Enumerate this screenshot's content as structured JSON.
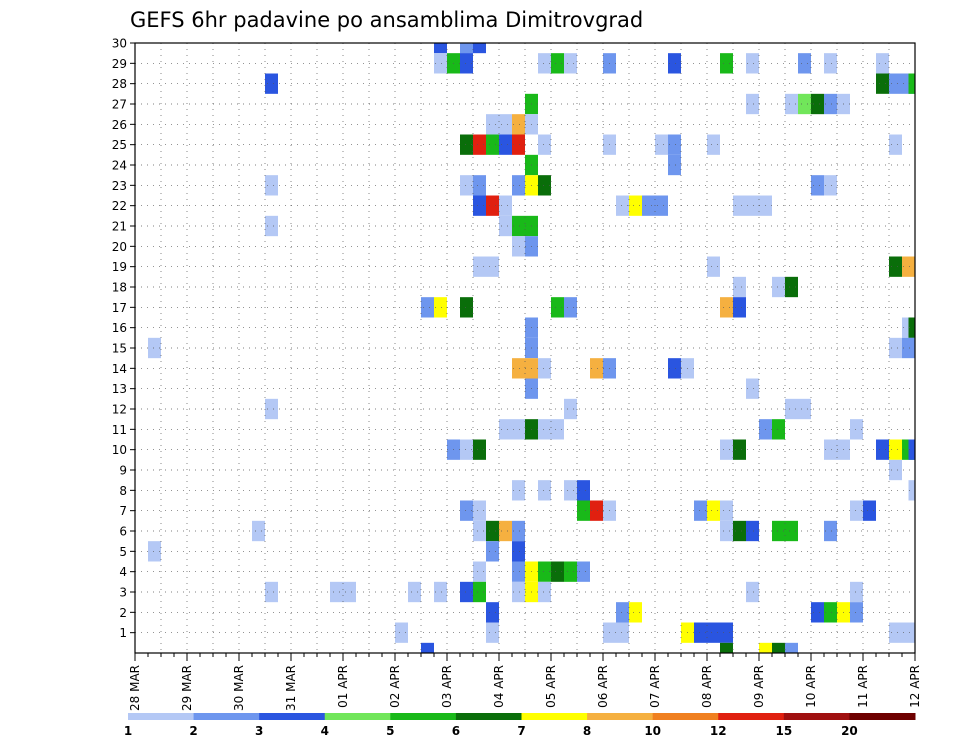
{
  "chart_data": {
    "type": "heatmap",
    "title": "GEFS 6hr padavine po ansamblima Dimitrovgrad",
    "xlabel": "",
    "ylabel": "",
    "x_tick_labels": [
      "28 MAR",
      "29 MAR",
      "30 MAR",
      "31 MAR",
      "01 APR",
      "02 APR",
      "03 APR",
      "04 APR",
      "05 APR",
      "06 APR",
      "07 APR",
      "08 APR",
      "09 APR",
      "10 APR",
      "11 APR",
      "12 APR"
    ],
    "x_unit": "6-hour step",
    "x_range": [
      0,
      60
    ],
    "y_tick_labels": [
      "1",
      "2",
      "3",
      "4",
      "5",
      "6",
      "7",
      "8",
      "9",
      "10",
      "11",
      "12",
      "13",
      "14",
      "15",
      "16",
      "17",
      "18",
      "19",
      "20",
      "21",
      "22",
      "23",
      "24",
      "25",
      "26",
      "27",
      "28",
      "29",
      "30"
    ],
    "y_range": [
      0,
      30
    ],
    "grid": true,
    "legend": {
      "placement": "bottom",
      "boundaries": [
        "1",
        "2",
        "3",
        "4",
        "5",
        "6",
        "7",
        "8",
        "10",
        "12",
        "15",
        "20"
      ],
      "colors": [
        "#b4c8f5",
        "#6e96ee",
        "#2a55e0",
        "#71e65a",
        "#19b919",
        "#0a6e0a",
        "#ffff00",
        "#f5b040",
        "#f08020",
        "#e02010",
        "#a01010",
        "#6e0000"
      ]
    },
    "levels_note_colors": "level index 0..11 maps to legend colors",
    "cells": [
      [
        23.5,
        30,
        2
      ],
      [
        25.5,
        30,
        2
      ],
      [
        26.5,
        30,
        2
      ],
      [
        25.5,
        30,
        1
      ],
      [
        23.5,
        29,
        0
      ],
      [
        24.5,
        29,
        4
      ],
      [
        25.5,
        29,
        2
      ],
      [
        31.5,
        29,
        0
      ],
      [
        32.5,
        29,
        4
      ],
      [
        33.5,
        29,
        0
      ],
      [
        36.5,
        29,
        1
      ],
      [
        41.5,
        29,
        2
      ],
      [
        45.5,
        29,
        4
      ],
      [
        47.5,
        29,
        0
      ],
      [
        51.5,
        29,
        1
      ],
      [
        53.5,
        29,
        0
      ],
      [
        57.5,
        29,
        0
      ],
      [
        10.5,
        28,
        2
      ],
      [
        57.5,
        28,
        5
      ],
      [
        58.5,
        28,
        1
      ],
      [
        59.5,
        28,
        1
      ],
      [
        60,
        28,
        4
      ],
      [
        30.5,
        27,
        4
      ],
      [
        47.5,
        27,
        0
      ],
      [
        50.5,
        27,
        0
      ],
      [
        51.5,
        27,
        3
      ],
      [
        52.5,
        27,
        5
      ],
      [
        53.5,
        27,
        1
      ],
      [
        54.5,
        27,
        0
      ],
      [
        27.5,
        26,
        0
      ],
      [
        28.5,
        26,
        0
      ],
      [
        29.5,
        26,
        7
      ],
      [
        30.5,
        26,
        0
      ],
      [
        25.5,
        25,
        5
      ],
      [
        26.5,
        25,
        9
      ],
      [
        27.5,
        25,
        4
      ],
      [
        28.5,
        25,
        2
      ],
      [
        29.5,
        25,
        9
      ],
      [
        31.5,
        25,
        0
      ],
      [
        36.5,
        25,
        0
      ],
      [
        40.5,
        25,
        0
      ],
      [
        41.5,
        25,
        1
      ],
      [
        44.5,
        25,
        0
      ],
      [
        58.5,
        25,
        0
      ],
      [
        30.5,
        24,
        4
      ],
      [
        41.5,
        24,
        1
      ],
      [
        25.5,
        23,
        0
      ],
      [
        26.5,
        23,
        1
      ],
      [
        29.5,
        23,
        1
      ],
      [
        30.5,
        23,
        6
      ],
      [
        31.5,
        23,
        5
      ],
      [
        10.5,
        23,
        0
      ],
      [
        52.5,
        23,
        1
      ],
      [
        53.5,
        23,
        0
      ],
      [
        26.5,
        22,
        2
      ],
      [
        27.5,
        22,
        9
      ],
      [
        28.5,
        22,
        0
      ],
      [
        37.5,
        22,
        0
      ],
      [
        38.5,
        22,
        6
      ],
      [
        39.5,
        22,
        1
      ],
      [
        40.5,
        22,
        1
      ],
      [
        46.5,
        22,
        0
      ],
      [
        47.5,
        22,
        0
      ],
      [
        48.5,
        22,
        0
      ],
      [
        10.5,
        21,
        0
      ],
      [
        28.5,
        21,
        0
      ],
      [
        29.5,
        21,
        4
      ],
      [
        30.5,
        21,
        4
      ],
      [
        29.5,
        20,
        0
      ],
      [
        30.5,
        20,
        1
      ],
      [
        26.5,
        19,
        0
      ],
      [
        27.5,
        19,
        0
      ],
      [
        44.5,
        19,
        0
      ],
      [
        58.5,
        19,
        5
      ],
      [
        59.5,
        19,
        7
      ],
      [
        46.5,
        18,
        0
      ],
      [
        49.5,
        18,
        0
      ],
      [
        50.5,
        18,
        5
      ],
      [
        22.5,
        17,
        1
      ],
      [
        23.5,
        17,
        6
      ],
      [
        25.5,
        17,
        5
      ],
      [
        32.5,
        17,
        4
      ],
      [
        33.5,
        17,
        1
      ],
      [
        45.5,
        17,
        7
      ],
      [
        46.5,
        17,
        2
      ],
      [
        30.5,
        16,
        1
      ],
      [
        59.5,
        16,
        0
      ],
      [
        60,
        16,
        5
      ],
      [
        1.5,
        15,
        0
      ],
      [
        30.5,
        15,
        1
      ],
      [
        58.5,
        15,
        0
      ],
      [
        59.5,
        15,
        1
      ],
      [
        29.5,
        14,
        7
      ],
      [
        30.5,
        14,
        7
      ],
      [
        31.5,
        14,
        0
      ],
      [
        35.5,
        14,
        7
      ],
      [
        36.5,
        14,
        1
      ],
      [
        41.5,
        14,
        2
      ],
      [
        42.5,
        14,
        0
      ],
      [
        30.5,
        13,
        1
      ],
      [
        47.5,
        13,
        0
      ],
      [
        10.5,
        12,
        0
      ],
      [
        33.5,
        12,
        0
      ],
      [
        50.5,
        12,
        0
      ],
      [
        51.5,
        12,
        0
      ],
      [
        28.5,
        11,
        0
      ],
      [
        29.5,
        11,
        0
      ],
      [
        30.5,
        11,
        5
      ],
      [
        31.5,
        11,
        0
      ],
      [
        32.5,
        11,
        0
      ],
      [
        48.5,
        11,
        1
      ],
      [
        49.5,
        11,
        4
      ],
      [
        55.5,
        11,
        0
      ],
      [
        24.5,
        10,
        1
      ],
      [
        25.5,
        10,
        0
      ],
      [
        26.5,
        10,
        5
      ],
      [
        45.5,
        10,
        0
      ],
      [
        46.5,
        10,
        5
      ],
      [
        53.5,
        10,
        0
      ],
      [
        54.5,
        10,
        0
      ],
      [
        57.5,
        10,
        2
      ],
      [
        58.5,
        10,
        6
      ],
      [
        59.5,
        10,
        4
      ],
      [
        60,
        10,
        2
      ],
      [
        58.5,
        9,
        0
      ],
      [
        29.5,
        8,
        0
      ],
      [
        31.5,
        8,
        0
      ],
      [
        33.5,
        8,
        0
      ],
      [
        34.5,
        8,
        2
      ],
      [
        60,
        8,
        0
      ],
      [
        25.5,
        7,
        1
      ],
      [
        26.5,
        7,
        0
      ],
      [
        34.5,
        7,
        4
      ],
      [
        35.5,
        7,
        9
      ],
      [
        36.5,
        7,
        0
      ],
      [
        43.5,
        7,
        1
      ],
      [
        44.5,
        7,
        6
      ],
      [
        45.5,
        7,
        0
      ],
      [
        55.5,
        7,
        0
      ],
      [
        56.5,
        7,
        2
      ],
      [
        9.5,
        6,
        0
      ],
      [
        26.5,
        6,
        0
      ],
      [
        27.5,
        6,
        5
      ],
      [
        28.5,
        6,
        7
      ],
      [
        29.5,
        6,
        1
      ],
      [
        45.5,
        6,
        0
      ],
      [
        46.5,
        6,
        5
      ],
      [
        47.5,
        6,
        2
      ],
      [
        49.5,
        6,
        4
      ],
      [
        50.5,
        6,
        4
      ],
      [
        53.5,
        6,
        1
      ],
      [
        1.5,
        5,
        0
      ],
      [
        27.5,
        5,
        1
      ],
      [
        29.5,
        5,
        2
      ],
      [
        26.5,
        4,
        0
      ],
      [
        29.5,
        4,
        1
      ],
      [
        30.5,
        4,
        6
      ],
      [
        31.5,
        4,
        4
      ],
      [
        32.5,
        4,
        5
      ],
      [
        33.5,
        4,
        4
      ],
      [
        34.5,
        4,
        1
      ],
      [
        10.5,
        3,
        0
      ],
      [
        15.5,
        3,
        0
      ],
      [
        16.5,
        3,
        0
      ],
      [
        21.5,
        3,
        0
      ],
      [
        23.5,
        3,
        0
      ],
      [
        25.5,
        3,
        2
      ],
      [
        26.5,
        3,
        4
      ],
      [
        29.5,
        3,
        0
      ],
      [
        30.5,
        3,
        6
      ],
      [
        31.5,
        3,
        0
      ],
      [
        47.5,
        3,
        0
      ],
      [
        55.5,
        3,
        0
      ],
      [
        27.5,
        2,
        2
      ],
      [
        37.5,
        2,
        1
      ],
      [
        38.5,
        2,
        6
      ],
      [
        52.5,
        2,
        2
      ],
      [
        53.5,
        2,
        4
      ],
      [
        54.5,
        2,
        6
      ],
      [
        55.5,
        2,
        1
      ],
      [
        20.5,
        1,
        0
      ],
      [
        27.5,
        1,
        0
      ],
      [
        36.5,
        1,
        0
      ],
      [
        37.5,
        1,
        0
      ],
      [
        42.5,
        1,
        6
      ],
      [
        43.5,
        1,
        2
      ],
      [
        44.5,
        1,
        2
      ],
      [
        45.5,
        1,
        2
      ],
      [
        58.5,
        1,
        0
      ],
      [
        59.5,
        1,
        0
      ],
      [
        22.5,
        0,
        2
      ],
      [
        45.5,
        0,
        5
      ],
      [
        48.5,
        0,
        6
      ],
      [
        49.5,
        0,
        5
      ],
      [
        50.5,
        0,
        1
      ]
    ]
  }
}
